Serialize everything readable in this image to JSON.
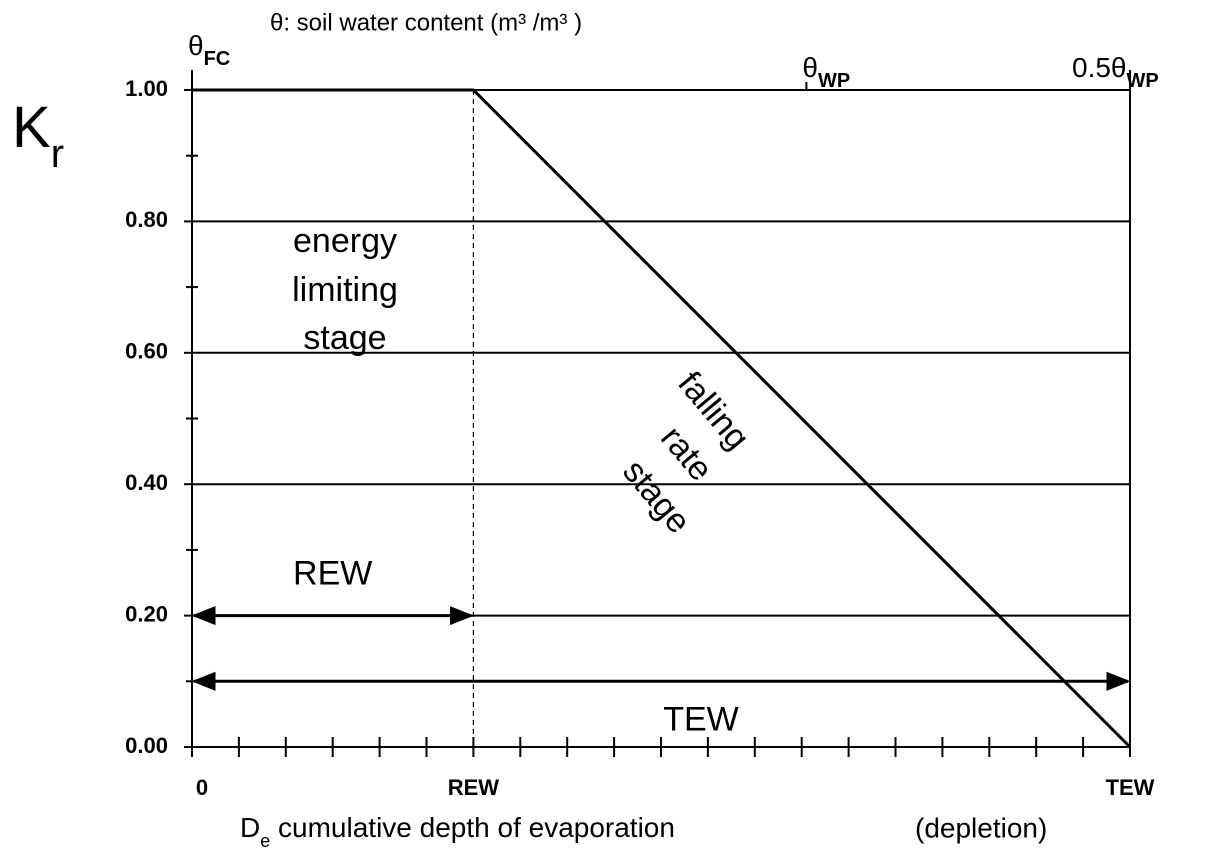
{
  "chart_data": {
    "type": "line",
    "title": "θ: soil water content (m³ /m³ )",
    "y_label": {
      "main": "K",
      "sub": "r"
    },
    "x_label": {
      "main": "D",
      "sub": "e",
      "rest": " cumulative depth of evaporation",
      "note": "(depletion)"
    },
    "xlim": [
      0,
      1
    ],
    "ylim": [
      0,
      1
    ],
    "xticks": [
      {
        "value": 0,
        "label": "0"
      },
      {
        "value": 0.3,
        "label": "REW"
      },
      {
        "value": 1,
        "label": "TEW"
      }
    ],
    "xminorticks": [
      0.05,
      0.1,
      0.15,
      0.2,
      0.25,
      0.35,
      0.4,
      0.45,
      0.5,
      0.55,
      0.6,
      0.65,
      0.7,
      0.75,
      0.8,
      0.85,
      0.9,
      0.95
    ],
    "x2ticks": [
      {
        "value": 0,
        "label": "θ",
        "sub": "FC"
      },
      {
        "value": 0.655,
        "label": "θ",
        "sub": "WP"
      },
      {
        "value": 1,
        "label": "0.5θ",
        "sub": "WP"
      }
    ],
    "yticks": [
      {
        "value": 0,
        "label": "0.00"
      },
      {
        "value": 0.2,
        "label": "0.20"
      },
      {
        "value": 0.4,
        "label": "0.40"
      },
      {
        "value": 0.6,
        "label": "0.60"
      },
      {
        "value": 0.8,
        "label": "0.80"
      },
      {
        "value": 1,
        "label": "1.00"
      }
    ],
    "yminorticks": [
      0.1,
      0.3,
      0.5,
      0.7,
      0.9
    ],
    "grid": true,
    "series": [
      {
        "name": "Kr",
        "color": "#000000",
        "x": [
          0,
          0.3,
          1
        ],
        "values": [
          1,
          1,
          0
        ]
      }
    ],
    "ranges": [
      {
        "label": "REW",
        "from": 0,
        "to": 0.3,
        "y": 0.2
      },
      {
        "label": "TEW",
        "from": 0,
        "to": 1,
        "y": 0.1
      }
    ],
    "annotations": [
      [
        "energy",
        "limiting",
        "stage"
      ],
      [
        "falling",
        "rate",
        "stage"
      ]
    ]
  }
}
